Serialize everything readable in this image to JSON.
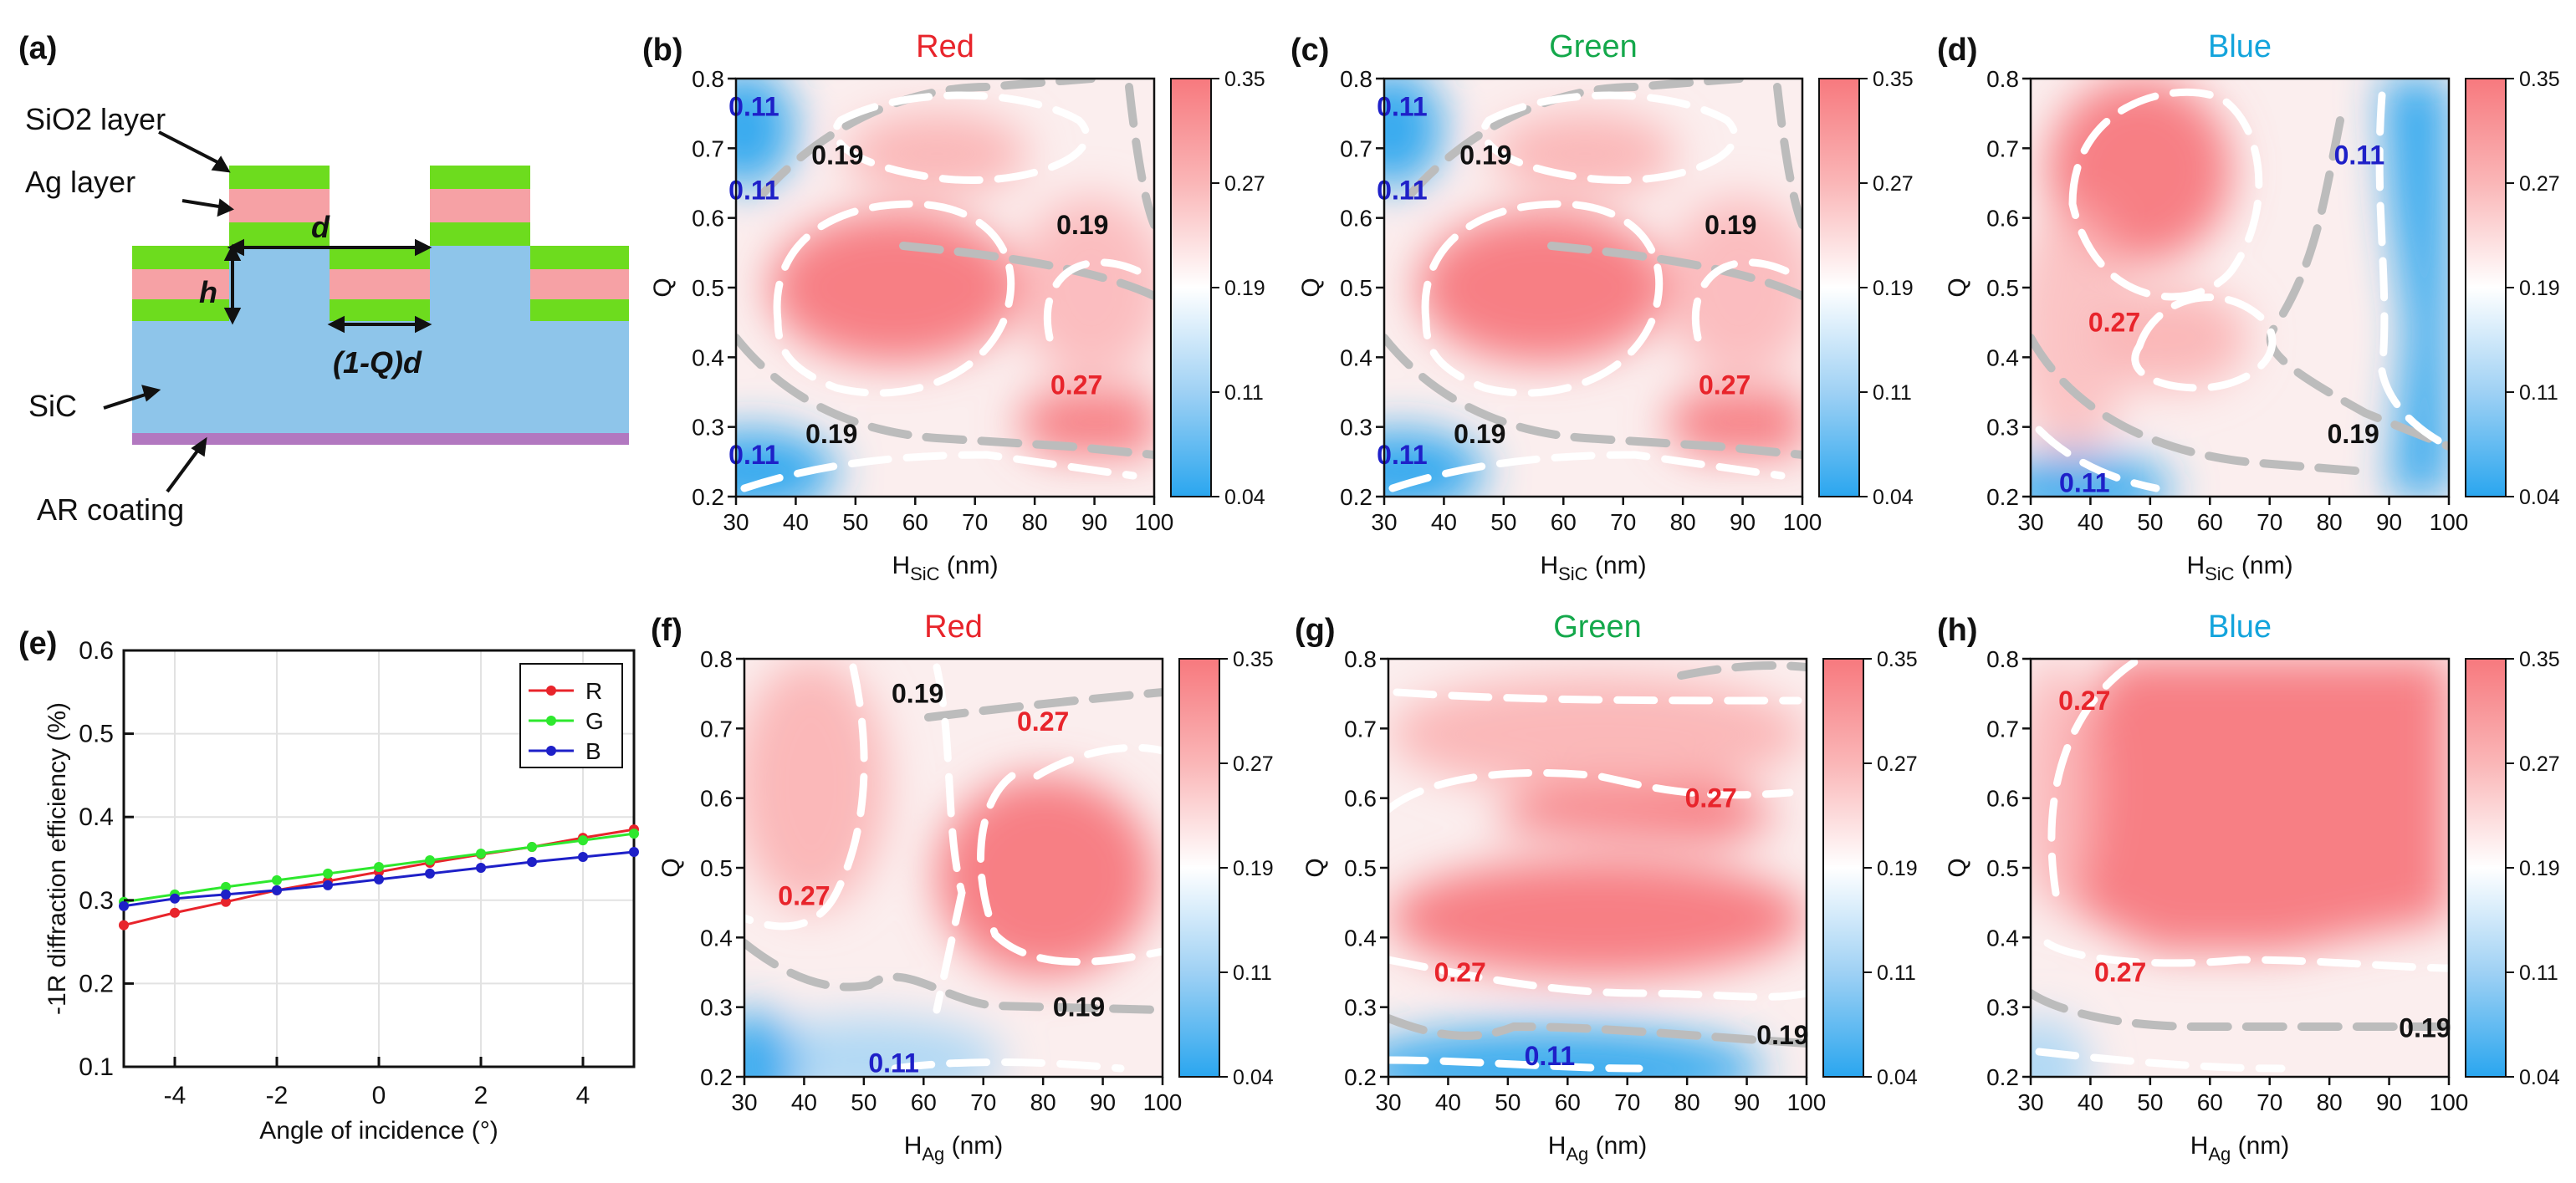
{
  "figure": {
    "colorbar_ticks": [
      "0.35",
      "0.27",
      "0.19",
      "0.11",
      "0.04"
    ],
    "colors": {
      "red_title": "#e8242b",
      "green_title": "#14a84b",
      "blue_title": "#13a4dc",
      "red_label": "#e8242b",
      "blue_label": "#1e20c8",
      "black_label": "#111111",
      "sio2": "#6ddc1e",
      "ag": "#f6a1a5",
      "sic": "#8ec5ea",
      "ar": "#b278c0"
    }
  },
  "schematic": {
    "panel_label": "(a)",
    "sio2_label": "SiO2 layer",
    "ag_label": "Ag layer",
    "sic_label": "SiC",
    "ar_label": "AR coating",
    "d_label": "d",
    "h_label": "h",
    "qd_label": "(1-Q)d"
  },
  "panels": [
    {
      "id": "b",
      "label": "(b)",
      "title": "Red",
      "title_color": "red",
      "x_label": "H",
      "x_sub": "SiC",
      "x_unit": " (nm)",
      "y_label": "Q",
      "x_ticks": [
        "30",
        "40",
        "50",
        "60",
        "70",
        "80",
        "90",
        "100"
      ],
      "y_ticks": [
        "0.2",
        "0.3",
        "0.4",
        "0.5",
        "0.6",
        "0.7",
        "0.8"
      ],
      "contour_labels": [
        {
          "text": "0.11",
          "color": "blue",
          "x": 33,
          "y": 0.76
        },
        {
          "text": "0.19",
          "color": "black",
          "x": 47,
          "y": 0.69
        },
        {
          "text": "0.11",
          "color": "blue",
          "x": 33,
          "y": 0.64
        },
        {
          "text": "0.19",
          "color": "black",
          "x": 88,
          "y": 0.59
        },
        {
          "text": "0.27",
          "color": "red",
          "x": 87,
          "y": 0.36
        },
        {
          "text": "0.19",
          "color": "black",
          "x": 46,
          "y": 0.29
        },
        {
          "text": "0.11",
          "color": "blue",
          "x": 33,
          "y": 0.26
        }
      ]
    },
    {
      "id": "c",
      "label": "(c)",
      "title": "Green",
      "title_color": "green",
      "x_label": "H",
      "x_sub": "SiC",
      "x_unit": " (nm)",
      "y_label": "Q",
      "x_ticks": [
        "30",
        "40",
        "50",
        "60",
        "70",
        "80",
        "90",
        "100"
      ],
      "y_ticks": [
        "0.2",
        "0.3",
        "0.4",
        "0.5",
        "0.6",
        "0.7",
        "0.8"
      ],
      "contour_labels": [
        {
          "text": "0.11",
          "color": "blue",
          "x": 33,
          "y": 0.76
        },
        {
          "text": "0.19",
          "color": "black",
          "x": 47,
          "y": 0.69
        },
        {
          "text": "0.11",
          "color": "blue",
          "x": 33,
          "y": 0.64
        },
        {
          "text": "0.19",
          "color": "black",
          "x": 88,
          "y": 0.59
        },
        {
          "text": "0.27",
          "color": "red",
          "x": 87,
          "y": 0.36
        },
        {
          "text": "0.19",
          "color": "black",
          "x": 46,
          "y": 0.29
        },
        {
          "text": "0.11",
          "color": "blue",
          "x": 33,
          "y": 0.26
        }
      ]
    },
    {
      "id": "d",
      "label": "(d)",
      "title": "Blue",
      "title_color": "blue",
      "x_label": "H",
      "x_sub": "SiC",
      "x_unit": " (nm)",
      "y_label": "Q",
      "x_ticks": [
        "30",
        "40",
        "50",
        "60",
        "70",
        "80",
        "90",
        "100"
      ],
      "y_ticks": [
        "0.2",
        "0.3",
        "0.4",
        "0.5",
        "0.6",
        "0.7",
        "0.8"
      ],
      "contour_labels": [
        {
          "text": "0.11",
          "color": "blue",
          "x": 85,
          "y": 0.69
        },
        {
          "text": "0.27",
          "color": "red",
          "x": 44,
          "y": 0.45
        },
        {
          "text": "0.19",
          "color": "black",
          "x": 84,
          "y": 0.29
        },
        {
          "text": "0.11",
          "color": "blue",
          "x": 39,
          "y": 0.22
        }
      ]
    },
    {
      "id": "f",
      "label": "(f)",
      "title": "Red",
      "title_color": "red",
      "x_label": "H",
      "x_sub": "Ag",
      "x_unit": " (nm)",
      "y_label": "Q",
      "x_ticks": [
        "30",
        "40",
        "50",
        "60",
        "70",
        "80",
        "90",
        "100"
      ],
      "y_ticks": [
        "0.2",
        "0.3",
        "0.4",
        "0.5",
        "0.6",
        "0.7",
        "0.8"
      ],
      "contour_labels": [
        {
          "text": "0.19",
          "color": "black",
          "x": 59,
          "y": 0.75
        },
        {
          "text": "0.27",
          "color": "red",
          "x": 80,
          "y": 0.71
        },
        {
          "text": "0.27",
          "color": "red",
          "x": 40,
          "y": 0.46
        },
        {
          "text": "0.19",
          "color": "black",
          "x": 86,
          "y": 0.3
        },
        {
          "text": "0.11",
          "color": "blue",
          "x": 55,
          "y": 0.22
        }
      ]
    },
    {
      "id": "g",
      "label": "(g)",
      "title": "Green",
      "title_color": "green",
      "x_label": "H",
      "x_sub": "Ag",
      "x_unit": " (nm)",
      "y_label": "Q",
      "x_ticks": [
        "30",
        "40",
        "50",
        "60",
        "70",
        "80",
        "90",
        "100"
      ],
      "y_ticks": [
        "0.2",
        "0.3",
        "0.4",
        "0.5",
        "0.6",
        "0.7",
        "0.8"
      ],
      "contour_labels": [
        {
          "text": "0.27",
          "color": "red",
          "x": 84,
          "y": 0.6
        },
        {
          "text": "0.27",
          "color": "red",
          "x": 42,
          "y": 0.35
        },
        {
          "text": "0.19",
          "color": "black",
          "x": 96,
          "y": 0.26
        },
        {
          "text": "0.11",
          "color": "blue",
          "x": 57,
          "y": 0.23
        }
      ]
    },
    {
      "id": "h",
      "label": "(h)",
      "title": "Blue",
      "title_color": "blue",
      "x_label": "H",
      "x_sub": "Ag",
      "x_unit": " (nm)",
      "y_label": "Q",
      "x_ticks": [
        "30",
        "40",
        "50",
        "60",
        "70",
        "80",
        "90",
        "100"
      ],
      "y_ticks": [
        "0.2",
        "0.3",
        "0.4",
        "0.5",
        "0.6",
        "0.7",
        "0.8"
      ],
      "contour_labels": [
        {
          "text": "0.27",
          "color": "red",
          "x": 39,
          "y": 0.74
        },
        {
          "text": "0.27",
          "color": "red",
          "x": 45,
          "y": 0.35
        },
        {
          "text": "0.19",
          "color": "black",
          "x": 96,
          "y": 0.27
        }
      ]
    }
  ],
  "line_panel": {
    "label": "(e)"
  },
  "chart_data": {
    "type": "line",
    "title": "",
    "xlabel": "Angle of incidence (°)",
    "ylabel": "-1R diffraction efficiency (%)",
    "xlim": [
      -5,
      5
    ],
    "ylim": [
      0.1,
      0.6
    ],
    "x_ticks": [
      "-4",
      "-2",
      "0",
      "2",
      "4"
    ],
    "y_ticks": [
      "0.1",
      "0.2",
      "0.3",
      "0.4",
      "0.5",
      "0.6"
    ],
    "x": [
      -5,
      -4,
      -3,
      -2,
      -1,
      0,
      1,
      2,
      3,
      4,
      5
    ],
    "series": [
      {
        "name": "R",
        "color": "#e8242b",
        "values": [
          0.27,
          0.285,
          0.298,
          0.312,
          0.323,
          0.334,
          0.345,
          0.355,
          0.364,
          0.375,
          0.385
        ]
      },
      {
        "name": "G",
        "color": "#2ee82e",
        "values": [
          0.298,
          0.307,
          0.316,
          0.324,
          0.332,
          0.34,
          0.348,
          0.356,
          0.364,
          0.372,
          0.38
        ]
      },
      {
        "name": "B",
        "color": "#1e20c8",
        "values": [
          0.293,
          0.302,
          0.307,
          0.312,
          0.318,
          0.325,
          0.332,
          0.339,
          0.346,
          0.352,
          0.358
        ]
      }
    ],
    "legend_position": "top-right",
    "grid": true
  }
}
